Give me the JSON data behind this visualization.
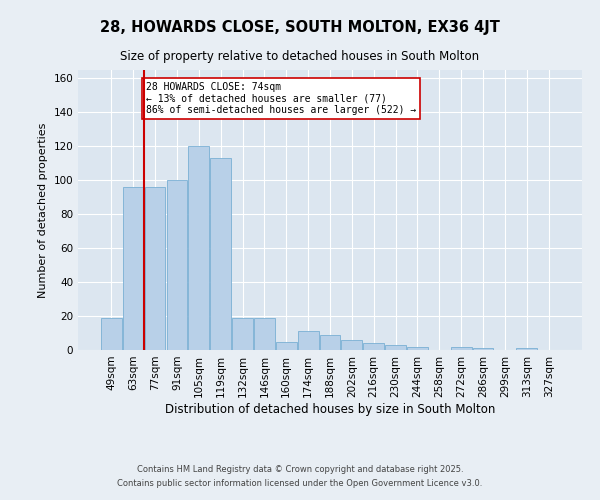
{
  "title": "28, HOWARDS CLOSE, SOUTH MOLTON, EX36 4JT",
  "subtitle": "Size of property relative to detached houses in South Molton",
  "xlabel": "Distribution of detached houses by size in South Molton",
  "ylabel": "Number of detached properties",
  "categories": [
    "49sqm",
    "63sqm",
    "77sqm",
    "91sqm",
    "105sqm",
    "119sqm",
    "132sqm",
    "146sqm",
    "160sqm",
    "174sqm",
    "188sqm",
    "202sqm",
    "216sqm",
    "230sqm",
    "244sqm",
    "258sqm",
    "272sqm",
    "286sqm",
    "299sqm",
    "313sqm",
    "327sqm"
  ],
  "values": [
    19,
    96,
    96,
    100,
    120,
    113,
    19,
    19,
    5,
    11,
    9,
    6,
    4,
    3,
    2,
    0,
    2,
    1,
    0,
    1,
    0
  ],
  "bar_color": "#b8d0e8",
  "bar_edge_color": "#7aafd4",
  "vline_x": 1.5,
  "vline_color": "#cc0000",
  "annotation_text": "28 HOWARDS CLOSE: 74sqm\n← 13% of detached houses are smaller (77)\n86% of semi-detached houses are larger (522) →",
  "annotation_box_color": "#ffffff",
  "annotation_box_edge": "#cc0000",
  "ylim": [
    0,
    165
  ],
  "yticks": [
    0,
    20,
    40,
    60,
    80,
    100,
    120,
    140,
    160
  ],
  "background_color": "#e8eef4",
  "plot_background": "#dce6f0",
  "footer_line1": "Contains HM Land Registry data © Crown copyright and database right 2025.",
  "footer_line2": "Contains public sector information licensed under the Open Government Licence v3.0."
}
